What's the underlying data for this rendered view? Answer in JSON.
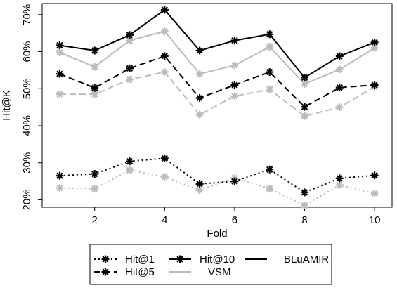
{
  "chart_data": {
    "type": "line",
    "title": "",
    "xlabel": "Fold",
    "ylabel": "Hit@K",
    "x": [
      1,
      2,
      3,
      4,
      5,
      6,
      7,
      8,
      9,
      10
    ],
    "x_ticks": [
      "2",
      "4",
      "6",
      "8",
      "10"
    ],
    "x_tick_values": [
      2,
      4,
      6,
      8,
      10
    ],
    "y_ticks": [
      "20%",
      "30%",
      "40%",
      "50%",
      "60%",
      "70%"
    ],
    "y_tick_values": [
      20,
      30,
      40,
      50,
      60,
      70
    ],
    "xlim": [
      0.5,
      10.5
    ],
    "ylim": [
      18,
      73
    ],
    "grid": false,
    "legend_position": "bottom",
    "series": [
      {
        "metric": "Hit@1",
        "method": "BLuAMIR",
        "color": "#000000",
        "dash": "dotted",
        "values": [
          26.5,
          27,
          30.4,
          31.2,
          24.3,
          25,
          28.2,
          22,
          25.8,
          26.6
        ]
      },
      {
        "metric": "Hit@1",
        "method": "VSM",
        "color": "#bbbbbb",
        "dash": "dotted",
        "values": [
          23.2,
          23,
          28,
          26.2,
          22.6,
          25.9,
          23,
          18.5,
          24,
          21.7
        ]
      },
      {
        "metric": "Hit@5",
        "method": "BLuAMIR",
        "color": "#000000",
        "dash": "dashed",
        "values": [
          54,
          50.2,
          55.5,
          58.8,
          47.5,
          51,
          54.5,
          45.1,
          50.3,
          51
        ]
      },
      {
        "metric": "Hit@5",
        "method": "VSM",
        "color": "#bbbbbb",
        "dash": "dashed",
        "values": [
          48.5,
          48.5,
          52.5,
          54.5,
          43,
          48,
          49.8,
          42.6,
          45,
          50.5
        ]
      },
      {
        "metric": "Hit@10",
        "method": "BLuAMIR",
        "color": "#000000",
        "dash": "solid",
        "values": [
          61.7,
          60.3,
          64.5,
          71.3,
          60.3,
          63,
          64.7,
          53,
          58.8,
          62.5
        ]
      },
      {
        "metric": "Hit@10",
        "method": "VSM",
        "color": "#bbbbbb",
        "dash": "solid",
        "values": [
          59.8,
          55.9,
          63,
          65.5,
          54,
          56.3,
          61.3,
          51.3,
          55.2,
          61
        ]
      }
    ],
    "legend": {
      "entries": [
        {
          "label": "Hit@1",
          "kind": "marker",
          "dash": "dotted",
          "color": "#000000"
        },
        {
          "label": "Hit@10",
          "kind": "marker",
          "dash": "solid",
          "color": "#000000"
        },
        {
          "label": "BLuAMIR",
          "kind": "line",
          "dash": "solid",
          "color": "#000000"
        },
        {
          "label": "Hit@5",
          "kind": "marker",
          "dash": "dashed",
          "color": "#000000"
        },
        {
          "label": "VSM",
          "kind": "line",
          "dash": "solid",
          "color": "#bbbbbb"
        }
      ]
    }
  }
}
